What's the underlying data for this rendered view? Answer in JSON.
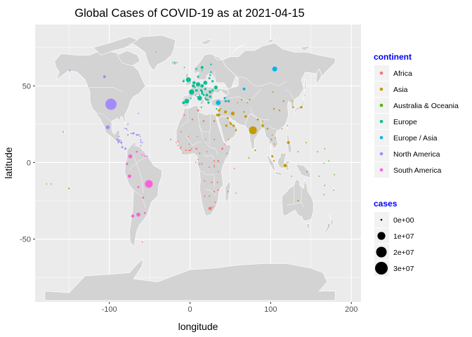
{
  "chart_data": {
    "type": "scatter",
    "title": "Global Cases of COVID-19 as at 2021-04-15",
    "xlabel": "longitude",
    "ylabel": "latitude",
    "xlim": [
      -192,
      212
    ],
    "ylim": [
      -91,
      90
    ],
    "xticks": [
      -100,
      0,
      100,
      200
    ],
    "yticks": [
      -50,
      0,
      50
    ],
    "grid": true,
    "legend_position": "right",
    "legend_title_color": "#0000ff",
    "land_color": "#d3d3d3",
    "panel_color": "#ebebeb",
    "legend": {
      "color_title": "continent",
      "size_title": "cases",
      "size_labels": [
        "0e+00",
        "1e+07",
        "2e+07",
        "3e+07"
      ],
      "size_values": [
        0,
        10000000,
        20000000,
        30000000
      ]
    },
    "series": [
      {
        "name": "Africa",
        "color": "#F8766D",
        "points": [
          [
            -7,
            31,
            40000
          ],
          [
            3,
            28,
            120000
          ],
          [
            10,
            34,
            300000
          ],
          [
            17,
            27,
            170000
          ],
          [
            30,
            27,
            210000
          ],
          [
            30,
            15,
            33000
          ],
          [
            -15,
            14,
            6000
          ],
          [
            -11,
            20,
            18000
          ],
          [
            -2,
            17,
            10000
          ],
          [
            -1,
            12,
            13000
          ],
          [
            9,
            17,
            5000
          ],
          [
            19,
            15,
            4000
          ],
          [
            -17,
            13,
            5000
          ],
          [
            -15,
            11,
            4000
          ],
          [
            -11,
            10,
            23000
          ],
          [
            -12,
            9,
            4000
          ],
          [
            -9,
            6,
            2000
          ],
          [
            -5,
            8,
            46000
          ],
          [
            -1,
            8,
            91000
          ],
          [
            1,
            8,
            10000
          ],
          [
            2,
            9,
            7000
          ],
          [
            8,
            9,
            164000
          ],
          [
            12,
            6,
            31000
          ],
          [
            21,
            7,
            5000
          ],
          [
            10,
            2,
            7000
          ],
          [
            12,
            -1,
            23000
          ],
          [
            15,
            -1,
            10000
          ],
          [
            24,
            -3,
            29000
          ],
          [
            30,
            1,
            41000
          ],
          [
            30,
            -2,
            24000
          ],
          [
            30,
            -3,
            3000
          ],
          [
            35,
            1,
            150000
          ],
          [
            40,
            9,
            250000
          ],
          [
            43,
            12,
            6000
          ],
          [
            46,
            6,
            13000
          ],
          [
            35,
            -6,
            500
          ],
          [
            18,
            -12,
            24000
          ],
          [
            27,
            -13,
            90000
          ],
          [
            34,
            -13,
            34000
          ],
          [
            30,
            -19,
            37000
          ],
          [
            24,
            -22,
            46000
          ],
          [
            18,
            -22,
            45000
          ],
          [
            35,
            -18,
            68000
          ],
          [
            47,
            -19,
            30000
          ],
          [
            25,
            -30,
            1560000
          ],
          [
            31,
            -26,
            17000
          ],
          [
            28,
            -29,
            11000
          ],
          [
            57,
            -20,
            1200
          ],
          [
            55,
            -4,
            4000
          ],
          [
            -24,
            15,
            20000
          ],
          [
            7,
            0,
            2000
          ]
        ]
      },
      {
        "name": "Asia",
        "color": "#C49A00",
        "points": [
          [
            78,
            21,
            14000000
          ],
          [
            104,
            35,
            100000
          ],
          [
            138,
            36,
            520000
          ],
          [
            128,
            36,
            110000
          ],
          [
            127,
            40,
            100
          ],
          [
            103,
            46,
            15000
          ],
          [
            67,
            48,
            300000
          ],
          [
            74,
            41,
            90000
          ],
          [
            71,
            39,
            15000
          ],
          [
            64,
            41,
            80000
          ],
          [
            59,
            39,
            1000
          ],
          [
            45,
            40,
            200000
          ],
          [
            48,
            40,
            300000
          ],
          [
            43,
            42,
            300000
          ],
          [
            35,
            39,
            4000000
          ],
          [
            36,
            34,
            500000
          ],
          [
            38,
            35,
            25000
          ],
          [
            35,
            31,
            300000
          ],
          [
            34,
            31,
            800000
          ],
          [
            36,
            31,
            700000
          ],
          [
            44,
            33,
            900000
          ],
          [
            53,
            32,
            2200000
          ],
          [
            45,
            24,
            400000
          ],
          [
            51,
            25,
            200000
          ],
          [
            50,
            26,
            180000
          ],
          [
            54,
            24,
            490000
          ],
          [
            57,
            21,
            170000
          ],
          [
            48,
            15,
            5000
          ],
          [
            47,
            29,
            250000
          ],
          [
            67,
            33,
            57000
          ],
          [
            69,
            30,
            730000
          ],
          [
            84,
            28,
            280000
          ],
          [
            90,
            27,
            1000
          ],
          [
            90,
            24,
            700000
          ],
          [
            81,
            8,
            95000
          ],
          [
            96,
            22,
            142000
          ],
          [
            101,
            15,
            40000
          ],
          [
            105,
            12,
            400
          ],
          [
            102,
            18,
            50
          ],
          [
            106,
            16,
            2800
          ],
          [
            102,
            4,
            360000
          ],
          [
            104,
            1,
            60000
          ],
          [
            114,
            5,
            200
          ],
          [
            122,
            13,
            900000
          ],
          [
            118,
            -2,
            1600000
          ],
          [
            126,
            -9,
            900
          ],
          [
            114,
            22,
            12000
          ],
          [
            121,
            24,
            1000
          ],
          [
            73,
            3,
            25000
          ],
          [
            116,
            40,
            90000
          ],
          [
            111,
            34,
            80000
          ]
        ]
      },
      {
        "name": "Australia & Oceania",
        "color": "#53B400",
        "points": [
          [
            134,
            -25,
            29000
          ],
          [
            172,
            -41,
            2600
          ],
          [
            178,
            -18,
            70
          ],
          [
            -172,
            -14,
            3
          ],
          [
            -178,
            -14,
            1
          ],
          [
            -150,
            -17,
            18000
          ],
          [
            160,
            -9,
            20
          ],
          [
            167,
            -15,
            3
          ],
          [
            145,
            -6,
            9500
          ],
          [
            172,
            1,
            1
          ],
          [
            134,
            7,
            1
          ],
          [
            158,
            7,
            1
          ],
          [
            167,
            9,
            4
          ],
          [
            166,
            -0.5,
            1
          ],
          [
            179,
            -8,
            1
          ],
          [
            166,
            -21,
            120
          ],
          [
            144,
            13,
            7800
          ]
        ]
      },
      {
        "name": "Europe",
        "color": "#00C094",
        "points": [
          [
            -2,
            54,
            4370000
          ],
          [
            -8,
            53,
            240000
          ],
          [
            2,
            46,
            5100000
          ],
          [
            -4,
            40,
            3400000
          ],
          [
            -8,
            39,
            830000
          ],
          [
            12,
            42,
            3800000
          ],
          [
            10,
            51,
            3100000
          ],
          [
            5,
            52,
            1400000
          ],
          [
            4,
            50,
            940000
          ],
          [
            6,
            49,
            65000
          ],
          [
            8,
            47,
            630000
          ],
          [
            14,
            47,
            590000
          ],
          [
            15,
            50,
            1600000
          ],
          [
            19,
            52,
            2600000
          ],
          [
            19,
            48,
            390000
          ],
          [
            15,
            46,
            230000
          ],
          [
            15,
            45,
            320000
          ],
          [
            17,
            44,
            190000
          ],
          [
            21,
            44,
            660000
          ],
          [
            19,
            42,
            93000
          ],
          [
            20,
            41,
            130000
          ],
          [
            22,
            41,
            140000
          ],
          [
            23,
            39,
            310000
          ],
          [
            25,
            43,
            380000
          ],
          [
            25,
            46,
            1000000
          ],
          [
            28,
            47,
            240000
          ],
          [
            32,
            49,
            2000000
          ],
          [
            28,
            53,
            340000
          ],
          [
            24,
            55,
            230000
          ],
          [
            25,
            57,
            110000
          ],
          [
            26,
            59,
            110000
          ],
          [
            26,
            64,
            80000
          ],
          [
            15,
            62,
            850000
          ],
          [
            8,
            61,
            100000
          ],
          [
            10,
            56,
            240000
          ],
          [
            -19,
            65,
            6000
          ],
          [
            14,
            36,
            30000
          ],
          [
            33,
            35,
            50000
          ],
          [
            12,
            44,
            5000
          ],
          [
            9,
            43,
            2500
          ],
          [
            7,
            44,
            1000
          ],
          [
            1,
            42,
            12000
          ],
          [
            9,
            47,
            3000
          ],
          [
            15,
            60,
            4000
          ],
          [
            -7,
            62,
            600
          ],
          [
            -4,
            54,
            1500
          ]
        ]
      },
      {
        "name": "Europe / Asia",
        "color": "#00B6EB",
        "points": [
          [
            105,
            61,
            4600000
          ],
          [
            67,
            48,
            810000
          ],
          [
            35,
            39,
            3900000
          ],
          [
            44,
            40,
            210000
          ],
          [
            48,
            40,
            290000
          ],
          [
            43,
            42,
            290000
          ]
        ]
      },
      {
        "name": "North America",
        "color": "#A58AFF",
        "points": [
          [
            -98,
            38,
            31500000
          ],
          [
            -106,
            56,
            1060000
          ],
          [
            -102,
            23,
            2300000
          ],
          [
            -90,
            15,
            200000
          ],
          [
            -88,
            14,
            190000
          ],
          [
            -89,
            13,
            66000
          ],
          [
            -85,
            13,
            220000
          ],
          [
            -84,
            10,
            220000
          ],
          [
            -80,
            9,
            360000
          ],
          [
            -88,
            17,
            12000
          ],
          [
            -79,
            22,
            90000
          ],
          [
            -77,
            18,
            45000
          ],
          [
            -73,
            19,
            12800
          ],
          [
            -70,
            19,
            270000
          ],
          [
            -66,
            18,
            140000
          ],
          [
            -77,
            25,
            9500
          ],
          [
            -61,
            13,
            2000
          ],
          [
            -61,
            15,
            400
          ],
          [
            -62,
            17,
            1200
          ],
          [
            -61,
            11,
            9500
          ],
          [
            -59,
            13,
            3700
          ],
          [
            -64,
            32,
            2400
          ],
          [
            -42,
            72,
            31
          ],
          [
            -149,
            60,
            65000
          ],
          [
            -157,
            20,
            33000
          ],
          [
            -64,
            18,
            3000
          ],
          [
            -63,
            18,
            1700
          ],
          [
            -88,
            29,
            5000
          ],
          [
            -69,
            12,
            4000
          ],
          [
            -61,
            14,
            700
          ]
        ]
      },
      {
        "name": "South America",
        "color": "#FB61D7",
        "points": [
          [
            -51,
            -14,
            13700000
          ],
          [
            -64,
            -34,
            2600000
          ],
          [
            -71,
            -35,
            1100000
          ],
          [
            -74,
            4,
            2500000
          ],
          [
            -75,
            -9,
            1700000
          ],
          [
            -78,
            -1,
            350000
          ],
          [
            -66,
            7,
            180000
          ],
          [
            -64,
            -16,
            280000
          ],
          [
            -58,
            -23,
            250000
          ],
          [
            -56,
            -33,
            150000
          ],
          [
            -59,
            5,
            11000
          ],
          [
            -56,
            4,
            10000
          ],
          [
            -53,
            4,
            20000
          ],
          [
            -59,
            -52,
            60
          ]
        ]
      }
    ]
  }
}
